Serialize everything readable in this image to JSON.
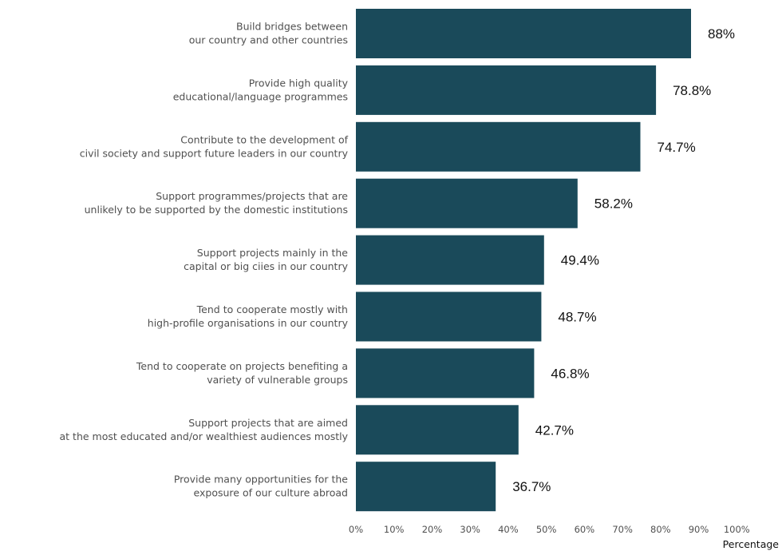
{
  "chart_data": {
    "type": "bar",
    "orientation": "horizontal",
    "title": "",
    "xlabel": "Percentage",
    "ylabel": "",
    "xlim": [
      0,
      100
    ],
    "bar_color": "#1a4a5a",
    "categories": [
      [
        "Build bridges between",
        "our country and other countries"
      ],
      [
        "Provide high quality",
        "educational/language programmes"
      ],
      [
        "Contribute to the development of",
        "civil society and support future leaders in our country"
      ],
      [
        "Support programmes/projects that are",
        "unlikely to be supported by the domestic institutions"
      ],
      [
        "Support projects mainly in the",
        "capital or big ciies in our country"
      ],
      [
        "Tend to cooperate mostly with",
        "high-profile organisations in our country"
      ],
      [
        "Tend to cooperate on projects benefiting a",
        "variety of vulnerable groups"
      ],
      [
        "Support projects that are aimed",
        "at the most educated and/or wealthiest audiences mostly"
      ],
      [
        "Provide many opportunities for the",
        "exposure of our culture abroad"
      ]
    ],
    "values": [
      88,
      78.8,
      74.7,
      58.2,
      49.4,
      48.7,
      46.8,
      42.7,
      36.7
    ],
    "value_labels": [
      "88%",
      "78.8%",
      "74.7%",
      "58.2%",
      "49.4%",
      "48.7%",
      "46.8%",
      "42.7%",
      "36.7%"
    ],
    "x_ticks": [
      "0%",
      "10%",
      "20%",
      "30%",
      "40%",
      "50%",
      "60%",
      "70%",
      "80%",
      "90%",
      "100%"
    ],
    "grid": false,
    "legend": "none"
  }
}
